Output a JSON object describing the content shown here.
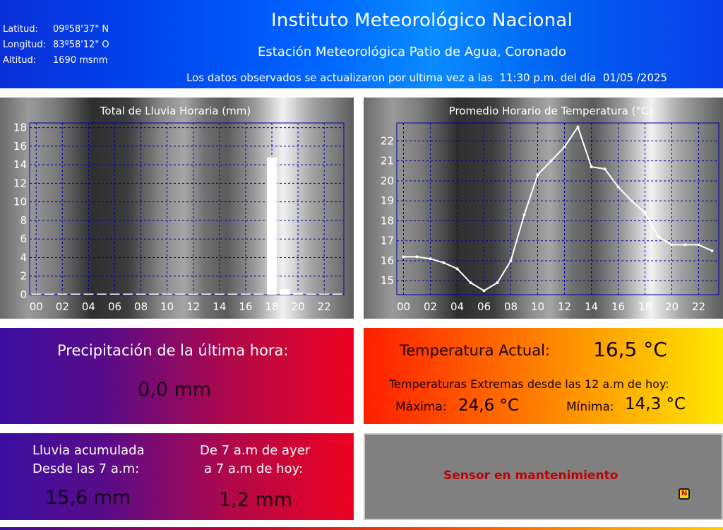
{
  "header": {
    "latitude_label": "Latitud:",
    "latitude_value": "09º58'37\" N",
    "longitude_label": "Longitud:",
    "longitude_value": "83º58'12\" O",
    "altitude_label": "Altitud:",
    "altitude_value": "1690 msnm",
    "institute": "Instituto Meteorológico Nacional",
    "station": "Estación Meteorológica Patio de Agua, Coronado",
    "update_text": "Los datos observados se actualizaron por ultima vez a las  11:30 p.m. del día  01/05 /2025"
  },
  "precipitation": {
    "title": "Precipitación de la última hora:",
    "value": "0,0 mm"
  },
  "temperature": {
    "current_label": "Temperatura Actual:",
    "current_value": "16,5 °C",
    "extremes_label": "Temperaturas Extremas desde las 12 a.m de hoy:",
    "max_label": "Máxima:",
    "max_value": "24,6 °C",
    "min_label": "Mínima:",
    "min_value": "14,3 °C"
  },
  "accumulated": {
    "label_line1": "Lluvia acumulada",
    "label_line2": "Desde las 7 a.m:",
    "value": "15,6 mm",
    "yesterday_line1": "De 7 a.m de ayer",
    "yesterday_line2": "a 7 a.m de hoy:",
    "yesterday_value": "1,2 mm"
  },
  "sensor": {
    "message": "Sensor en mantenimiento",
    "icon_letter": "N"
  },
  "colors": {
    "header_blue": "#0066ff",
    "bar_color": "#ffffff",
    "line_color": "#ffffff",
    "grid_color": "#0000aa",
    "sensor_text": "#c00000"
  },
  "chart_data": [
    {
      "type": "bar",
      "title": "Total de Lluvia Horaria (mm)",
      "categories": [
        "00",
        "01",
        "02",
        "03",
        "04",
        "05",
        "06",
        "07",
        "08",
        "09",
        "10",
        "11",
        "12",
        "13",
        "14",
        "15",
        "16",
        "17",
        "18",
        "19",
        "20",
        "21",
        "22",
        "23"
      ],
      "tick_labels": [
        "00",
        "02",
        "04",
        "06",
        "08",
        "10",
        "12",
        "14",
        "16",
        "18",
        "20",
        "22"
      ],
      "values": [
        0,
        0,
        0,
        0,
        0,
        0,
        0,
        0,
        0,
        0,
        0,
        0,
        0,
        0,
        0,
        0,
        0,
        0,
        14.8,
        0.6,
        0.2,
        0,
        0,
        0
      ],
      "ylim": [
        0,
        18.5
      ],
      "yticks": [
        0,
        2,
        4,
        6,
        8,
        10,
        12,
        14,
        16,
        18
      ],
      "grid": true
    },
    {
      "type": "line",
      "title": "Promedio Horario de Temperatura (°C)",
      "x": [
        0,
        1,
        2,
        3,
        4,
        5,
        6,
        7,
        8,
        9,
        10,
        11,
        12,
        13,
        14,
        15,
        16,
        17,
        18,
        19,
        20,
        21,
        22,
        23
      ],
      "tick_labels": [
        "00",
        "02",
        "04",
        "06",
        "08",
        "10",
        "12",
        "14",
        "16",
        "18",
        "20",
        "22"
      ],
      "values": [
        16.2,
        16.2,
        16.1,
        15.9,
        15.6,
        14.9,
        14.5,
        14.9,
        16.0,
        18.3,
        20.3,
        21.0,
        21.7,
        22.7,
        20.7,
        20.6,
        19.7,
        19.0,
        18.4,
        17.2,
        16.8,
        16.8,
        16.8,
        16.5
      ],
      "ylim": [
        14.3,
        22.9
      ],
      "yticks": [
        15,
        16,
        17,
        18,
        19,
        20,
        21,
        22
      ],
      "grid": true
    }
  ]
}
